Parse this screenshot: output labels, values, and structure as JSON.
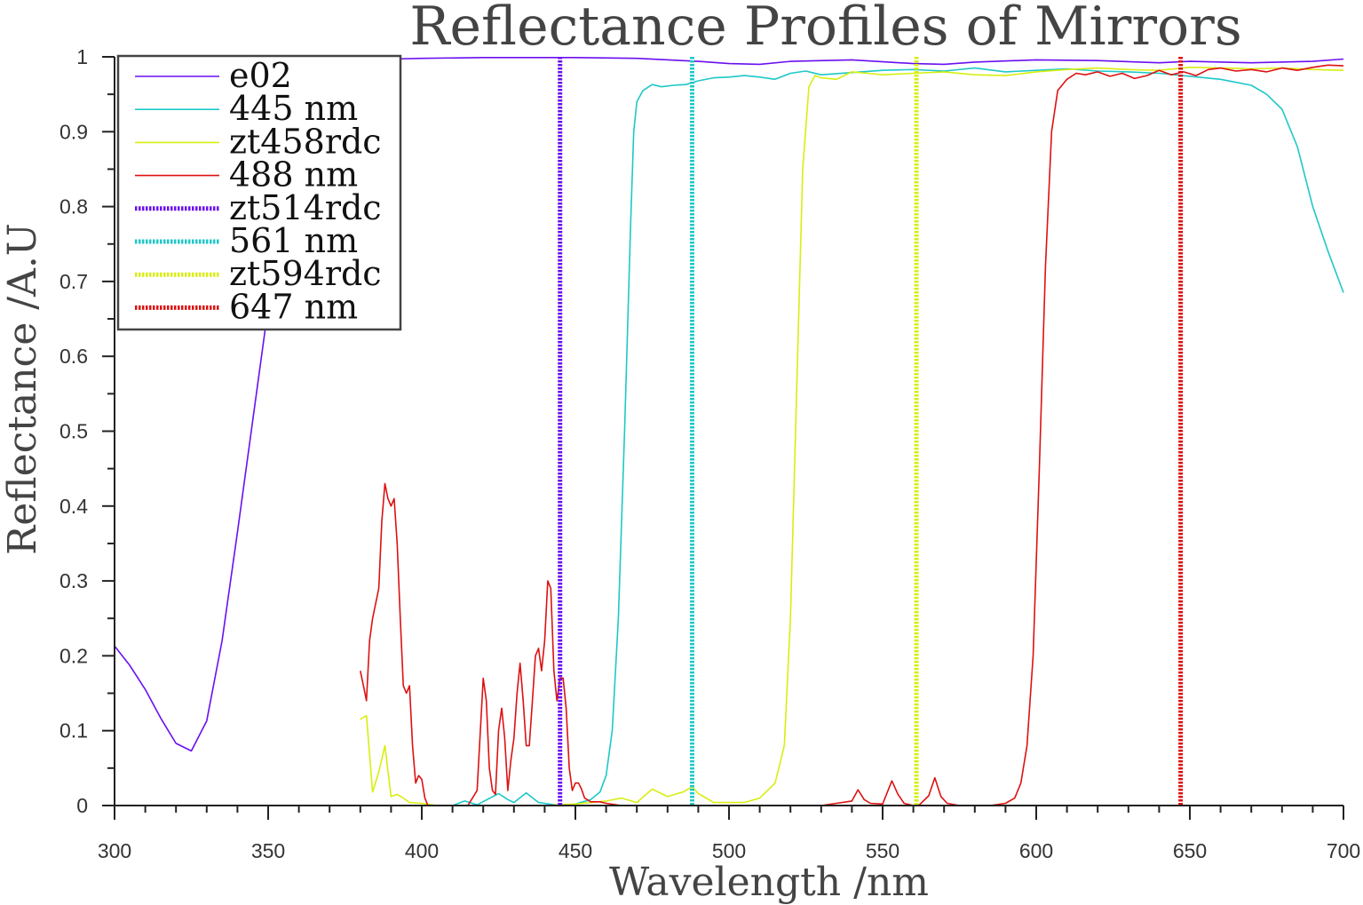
{
  "chart_data": {
    "type": "line",
    "title": "Reflectance Profiles of Mirrors",
    "xlabel": "Wavelength /nm",
    "ylabel": "Reflectance /A.U",
    "xlim": [
      300,
      700
    ],
    "ylim": [
      0,
      1
    ],
    "xticks": [
      "300",
      "350",
      "400",
      "450",
      "500",
      "550",
      "600",
      "650",
      "700"
    ],
    "yticks": [
      "0",
      "0.1",
      "0.2",
      "0.3",
      "0.4",
      "0.5",
      "0.6",
      "0.7",
      "0.8",
      "0.9",
      "1"
    ],
    "grid": false,
    "legend_position": "top-left",
    "series": [
      {
        "name": "e02",
        "color": "#6a0ff0",
        "style": "solid",
        "points": [
          [
            300,
            0.213
          ],
          [
            305,
            0.187
          ],
          [
            310,
            0.155
          ],
          [
            315,
            0.117
          ],
          [
            320,
            0.083
          ],
          [
            325,
            0.073
          ],
          [
            330,
            0.113
          ],
          [
            335,
            0.22
          ],
          [
            340,
            0.365
          ],
          [
            345,
            0.515
          ],
          [
            350,
            0.665
          ],
          [
            355,
            0.8
          ],
          [
            360,
            0.905
          ],
          [
            365,
            0.965
          ],
          [
            370,
            0.99
          ],
          [
            380,
            0.996
          ],
          [
            390,
            0.997
          ],
          [
            400,
            0.998
          ],
          [
            420,
            0.999
          ],
          [
            450,
            0.999
          ],
          [
            470,
            0.998
          ],
          [
            490,
            0.994
          ],
          [
            500,
            0.991
          ],
          [
            510,
            0.99
          ],
          [
            520,
            0.994
          ],
          [
            540,
            0.996
          ],
          [
            560,
            0.991
          ],
          [
            570,
            0.99
          ],
          [
            580,
            0.993
          ],
          [
            600,
            0.996
          ],
          [
            620,
            0.995
          ],
          [
            640,
            0.992
          ],
          [
            650,
            0.994
          ],
          [
            670,
            0.992
          ],
          [
            690,
            0.994
          ],
          [
            700,
            0.997
          ]
        ]
      },
      {
        "name": "445 nm",
        "color": "#1ec8c8",
        "style": "solid",
        "points": [
          [
            380,
            0.0
          ],
          [
            410,
            0.0
          ],
          [
            414,
            0.006
          ],
          [
            418,
            0.001
          ],
          [
            425,
            0.016
          ],
          [
            428,
            0.008
          ],
          [
            430,
            0.004
          ],
          [
            434,
            0.017
          ],
          [
            438,
            0.004
          ],
          [
            445,
            0.0
          ],
          [
            450,
            0.002
          ],
          [
            455,
            0.008
          ],
          [
            458,
            0.018
          ],
          [
            460,
            0.04
          ],
          [
            462,
            0.1
          ],
          [
            464,
            0.25
          ],
          [
            466,
            0.5
          ],
          [
            468,
            0.78
          ],
          [
            469,
            0.9
          ],
          [
            470,
            0.94
          ],
          [
            472,
            0.955
          ],
          [
            475,
            0.963
          ],
          [
            478,
            0.96
          ],
          [
            482,
            0.962
          ],
          [
            486,
            0.963
          ],
          [
            490,
            0.968
          ],
          [
            495,
            0.972
          ],
          [
            500,
            0.973
          ],
          [
            505,
            0.975
          ],
          [
            510,
            0.973
          ],
          [
            515,
            0.97
          ],
          [
            520,
            0.978
          ],
          [
            525,
            0.981
          ],
          [
            530,
            0.976
          ],
          [
            540,
            0.979
          ],
          [
            550,
            0.982
          ],
          [
            560,
            0.983
          ],
          [
            570,
            0.981
          ],
          [
            580,
            0.985
          ],
          [
            590,
            0.98
          ],
          [
            600,
            0.982
          ],
          [
            610,
            0.984
          ],
          [
            620,
            0.981
          ],
          [
            630,
            0.98
          ],
          [
            640,
            0.978
          ],
          [
            650,
            0.974
          ],
          [
            660,
            0.97
          ],
          [
            670,
            0.962
          ],
          [
            675,
            0.95
          ],
          [
            680,
            0.93
          ],
          [
            685,
            0.88
          ],
          [
            690,
            0.8
          ],
          [
            695,
            0.74
          ],
          [
            700,
            0.685
          ]
        ]
      },
      {
        "name": "zt458rdc",
        "color": "#d8ee10",
        "style": "solid",
        "points": [
          [
            380,
            0.115
          ],
          [
            382,
            0.12
          ],
          [
            384,
            0.018
          ],
          [
            386,
            0.045
          ],
          [
            388,
            0.08
          ],
          [
            390,
            0.012
          ],
          [
            392,
            0.015
          ],
          [
            394,
            0.01
          ],
          [
            396,
            0.004
          ],
          [
            400,
            0.003
          ],
          [
            405,
            0.0
          ],
          [
            420,
            0.0
          ],
          [
            440,
            0.0
          ],
          [
            450,
            0.002
          ],
          [
            460,
            0.006
          ],
          [
            465,
            0.01
          ],
          [
            470,
            0.004
          ],
          [
            475,
            0.022
          ],
          [
            480,
            0.012
          ],
          [
            485,
            0.018
          ],
          [
            488,
            0.025
          ],
          [
            490,
            0.016
          ],
          [
            495,
            0.004
          ],
          [
            500,
            0.004
          ],
          [
            505,
            0.004
          ],
          [
            510,
            0.01
          ],
          [
            515,
            0.03
          ],
          [
            518,
            0.08
          ],
          [
            520,
            0.25
          ],
          [
            522,
            0.55
          ],
          [
            524,
            0.85
          ],
          [
            526,
            0.96
          ],
          [
            528,
            0.975
          ],
          [
            530,
            0.972
          ],
          [
            535,
            0.97
          ],
          [
            540,
            0.98
          ],
          [
            545,
            0.978
          ],
          [
            550,
            0.976
          ],
          [
            560,
            0.978
          ],
          [
            570,
            0.98
          ],
          [
            580,
            0.976
          ],
          [
            590,
            0.975
          ],
          [
            600,
            0.98
          ],
          [
            610,
            0.983
          ],
          [
            620,
            0.985
          ],
          [
            630,
            0.983
          ],
          [
            640,
            0.982
          ],
          [
            650,
            0.986
          ],
          [
            660,
            0.985
          ],
          [
            670,
            0.984
          ],
          [
            680,
            0.985
          ],
          [
            690,
            0.983
          ],
          [
            700,
            0.982
          ]
        ]
      },
      {
        "name": "488 nm",
        "color": "#dd1111",
        "style": "solid",
        "points": [
          [
            380,
            0.18
          ],
          [
            381,
            0.16
          ],
          [
            382,
            0.14
          ],
          [
            383,
            0.22
          ],
          [
            384,
            0.25
          ],
          [
            385,
            0.27
          ],
          [
            386,
            0.29
          ],
          [
            387,
            0.38
          ],
          [
            388,
            0.43
          ],
          [
            389,
            0.41
          ],
          [
            390,
            0.4
          ],
          [
            391,
            0.41
          ],
          [
            392,
            0.35
          ],
          [
            393,
            0.25
          ],
          [
            394,
            0.16
          ],
          [
            395,
            0.15
          ],
          [
            396,
            0.16
          ],
          [
            397,
            0.08
          ],
          [
            398,
            0.03
          ],
          [
            399,
            0.04
          ],
          [
            400,
            0.035
          ],
          [
            401,
            0.01
          ],
          [
            402,
            0.0
          ],
          [
            415,
            0.0
          ],
          [
            418,
            0.02
          ],
          [
            420,
            0.17
          ],
          [
            421,
            0.14
          ],
          [
            422,
            0.05
          ],
          [
            423,
            0.02
          ],
          [
            424,
            0.015
          ],
          [
            425,
            0.1
          ],
          [
            426,
            0.13
          ],
          [
            427,
            0.09
          ],
          [
            428,
            0.02
          ],
          [
            429,
            0.06
          ],
          [
            430,
            0.09
          ],
          [
            431,
            0.15
          ],
          [
            432,
            0.19
          ],
          [
            433,
            0.14
          ],
          [
            434,
            0.08
          ],
          [
            435,
            0.08
          ],
          [
            436,
            0.14
          ],
          [
            437,
            0.2
          ],
          [
            438,
            0.21
          ],
          [
            439,
            0.18
          ],
          [
            440,
            0.22
          ],
          [
            441,
            0.3
          ],
          [
            442,
            0.29
          ],
          [
            443,
            0.18
          ],
          [
            444,
            0.14
          ],
          [
            445,
            0.17
          ],
          [
            446,
            0.17
          ],
          [
            447,
            0.13
          ],
          [
            448,
            0.05
          ],
          [
            449,
            0.02
          ],
          [
            450,
            0.03
          ],
          [
            451,
            0.03
          ],
          [
            452,
            0.022
          ],
          [
            453,
            0.01
          ],
          [
            455,
            0.005
          ],
          [
            458,
            0.005
          ],
          [
            460,
            0.003
          ],
          [
            465,
            0.0
          ],
          [
            530,
            0.0
          ],
          [
            535,
            0.003
          ],
          [
            540,
            0.006
          ],
          [
            542,
            0.021
          ],
          [
            544,
            0.008
          ],
          [
            546,
            0.003
          ],
          [
            550,
            0.002
          ],
          [
            553,
            0.033
          ],
          [
            555,
            0.015
          ],
          [
            557,
            0.003
          ],
          [
            560,
            0.0
          ],
          [
            562,
            0.001
          ],
          [
            565,
            0.013
          ],
          [
            567,
            0.037
          ],
          [
            569,
            0.012
          ],
          [
            571,
            0.003
          ],
          [
            575,
            0.0
          ],
          [
            585,
            0.0
          ],
          [
            590,
            0.003
          ],
          [
            593,
            0.01
          ],
          [
            595,
            0.03
          ],
          [
            597,
            0.08
          ],
          [
            599,
            0.2
          ],
          [
            601,
            0.45
          ],
          [
            603,
            0.72
          ],
          [
            605,
            0.9
          ],
          [
            607,
            0.955
          ],
          [
            610,
            0.97
          ],
          [
            613,
            0.978
          ],
          [
            616,
            0.976
          ],
          [
            620,
            0.98
          ],
          [
            624,
            0.974
          ],
          [
            628,
            0.978
          ],
          [
            632,
            0.971
          ],
          [
            636,
            0.975
          ],
          [
            640,
            0.982
          ],
          [
            644,
            0.976
          ],
          [
            648,
            0.98
          ],
          [
            652,
            0.975
          ],
          [
            656,
            0.983
          ],
          [
            660,
            0.985
          ],
          [
            665,
            0.981
          ],
          [
            670,
            0.983
          ],
          [
            675,
            0.98
          ],
          [
            680,
            0.985
          ],
          [
            685,
            0.982
          ],
          [
            690,
            0.986
          ],
          [
            695,
            0.989
          ],
          [
            700,
            0.988
          ]
        ]
      },
      {
        "name": "zt514rdc",
        "color": "#6a0ff0",
        "style": "dotted",
        "wavelength": 445
      },
      {
        "name": "561 nm",
        "color": "#1ec8c8",
        "style": "dotted",
        "wavelength": 488
      },
      {
        "name": "zt594rdc",
        "color": "#d8ee10",
        "style": "dotted",
        "wavelength": 561
      },
      {
        "name": "647 nm",
        "color": "#dd1111",
        "style": "dotted",
        "wavelength": 647
      }
    ]
  }
}
